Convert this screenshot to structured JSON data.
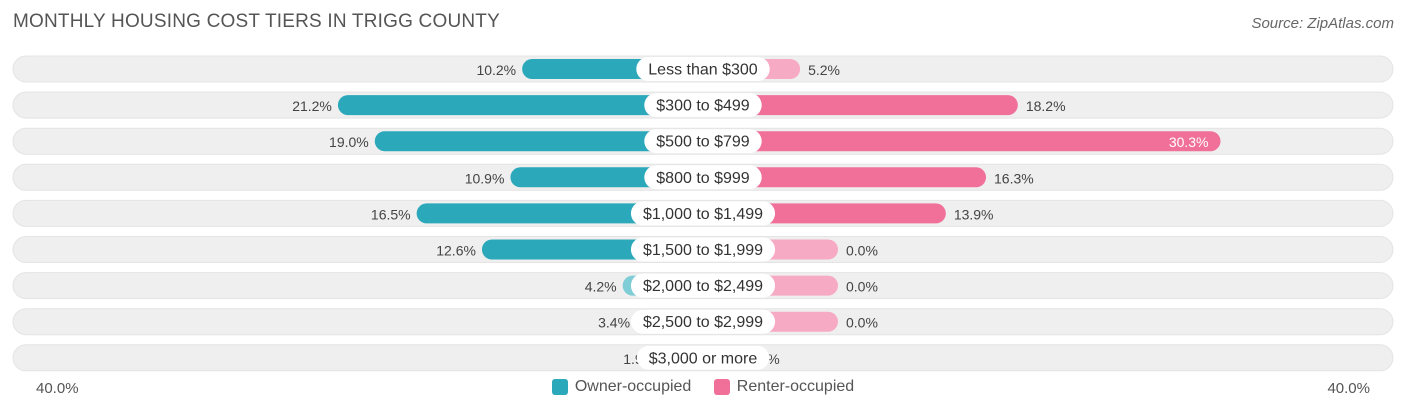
{
  "header": {
    "title": "MONTHLY HOUSING COST TIERS IN TRIGG COUNTY",
    "source": "Source: ZipAtlas.com"
  },
  "axis": {
    "left_label": "40.0%",
    "right_label": "40.0%"
  },
  "legend": {
    "owner_label": "Owner-occupied",
    "renter_label": "Renter-occupied"
  },
  "colors": {
    "owner_strong": "#2BA9BA",
    "owner_light": "#7FCDD6",
    "renter_strong": "#F0709A",
    "renter_light": "#F7AAC3",
    "track": "#EFEFEF"
  },
  "chart_data": {
    "type": "bar",
    "orientation": "horizontal-diverging",
    "xlim": [
      -40,
      40
    ],
    "categories": [
      "Less than $300",
      "$300 to $499",
      "$500 to $799",
      "$800 to $999",
      "$1,000 to $1,499",
      "$1,500 to $1,999",
      "$2,000 to $2,499",
      "$2,500 to $2,999",
      "$3,000 or more"
    ],
    "series": [
      {
        "name": "Owner-occupied",
        "values": [
          10.2,
          21.2,
          19.0,
          10.9,
          16.5,
          12.6,
          4.2,
          3.4,
          1.9
        ],
        "labels": [
          "10.2%",
          "21.2%",
          "19.0%",
          "10.9%",
          "16.5%",
          "12.6%",
          "4.2%",
          "3.4%",
          "1.9%"
        ]
      },
      {
        "name": "Renter-occupied",
        "values": [
          5.2,
          18.2,
          30.3,
          16.3,
          13.9,
          0.0,
          0.0,
          0.0,
          1.6
        ],
        "labels": [
          "5.2%",
          "18.2%",
          "30.3%",
          "16.3%",
          "13.9%",
          "0.0%",
          "0.0%",
          "0.0%",
          "1.6%"
        ]
      }
    ]
  }
}
